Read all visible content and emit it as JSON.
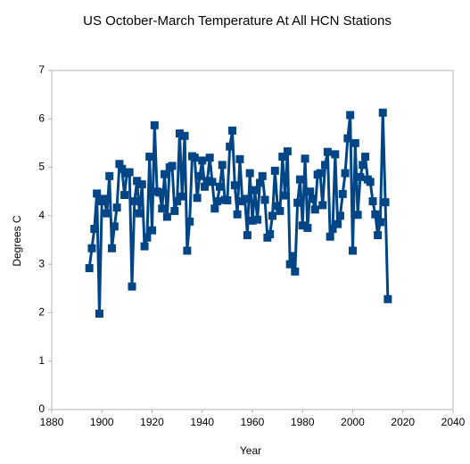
{
  "chart_data": {
    "type": "line",
    "title": "US October-March Temperature At All HCN Stations",
    "x_label": "Year",
    "y_label": "Degrees C",
    "x": [
      1895,
      1896,
      1897,
      1898,
      1899,
      1900,
      1901,
      1902,
      1903,
      1904,
      1905,
      1906,
      1907,
      1908,
      1909,
      1910,
      1911,
      1912,
      1913,
      1914,
      1915,
      1916,
      1917,
      1918,
      1919,
      1920,
      1921,
      1922,
      1923,
      1924,
      1925,
      1926,
      1927,
      1928,
      1929,
      1930,
      1931,
      1932,
      1933,
      1934,
      1935,
      1936,
      1937,
      1938,
      1939,
      1940,
      1941,
      1942,
      1943,
      1944,
      1945,
      1946,
      1947,
      1948,
      1949,
      1950,
      1951,
      1952,
      1953,
      1954,
      1955,
      1956,
      1957,
      1958,
      1959,
      1960,
      1961,
      1962,
      1963,
      1964,
      1965,
      1966,
      1967,
      1968,
      1969,
      1970,
      1971,
      1972,
      1973,
      1974,
      1975,
      1976,
      1977,
      1978,
      1979,
      1980,
      1981,
      1982,
      1983,
      1984,
      1985,
      1986,
      1987,
      1988,
      1989,
      1990,
      1991,
      1992,
      1993,
      1994,
      1995,
      1996,
      1997,
      1998,
      1999,
      2000,
      2001,
      2002,
      2003,
      2004,
      2005,
      2006,
      2007,
      2008,
      2009,
      2010,
      2011,
      2012,
      2013,
      2014
    ],
    "series": [
      {
        "color": "#004586",
        "values": [
          2.92,
          3.33,
          3.73,
          4.46,
          1.98,
          4.3,
          4.35,
          4.05,
          4.82,
          3.33,
          3.78,
          4.17,
          5.07,
          4.97,
          4.43,
          4.88,
          4.9,
          2.54,
          4.3,
          4.72,
          4.05,
          4.65,
          3.37,
          3.55,
          5.22,
          3.7,
          5.87,
          4.5,
          4.48,
          4.15,
          4.86,
          3.98,
          5.0,
          5.03,
          4.1,
          4.3,
          5.7,
          4.4,
          5.65,
          3.28,
          3.88,
          5.23,
          5.2,
          4.37,
          4.82,
          5.14,
          4.6,
          4.72,
          5.2,
          4.7,
          4.15,
          4.3,
          4.6,
          5.05,
          4.33,
          4.32,
          5.43,
          5.76,
          4.63,
          4.03,
          5.17,
          4.3,
          4.35,
          3.6,
          4.88,
          3.9,
          4.53,
          3.92,
          4.68,
          4.82,
          4.33,
          3.55,
          3.62,
          4.0,
          4.93,
          4.2,
          4.1,
          5.22,
          4.42,
          5.33,
          3.0,
          3.17,
          2.85,
          4.27,
          4.75,
          3.8,
          5.18,
          3.75,
          4.5,
          4.35,
          4.13,
          4.85,
          4.88,
          4.22,
          5.05,
          5.32,
          3.57,
          3.73,
          5.27,
          3.83,
          4.0,
          4.45,
          4.88,
          5.6,
          6.08,
          3.28,
          5.5,
          4.02,
          4.8,
          5.05,
          5.22,
          4.75,
          4.7,
          4.3,
          4.03,
          3.6,
          3.87,
          6.13,
          4.28,
          2.28
        ]
      }
    ],
    "xlim": [
      1880,
      2040
    ],
    "xticks": [
      1880,
      1900,
      1920,
      1940,
      1960,
      1980,
      2000,
      2020,
      2040
    ],
    "ylim": [
      0,
      7
    ],
    "yticks": [
      0,
      1,
      2,
      3,
      4,
      5,
      6,
      7
    ],
    "grid": false
  }
}
